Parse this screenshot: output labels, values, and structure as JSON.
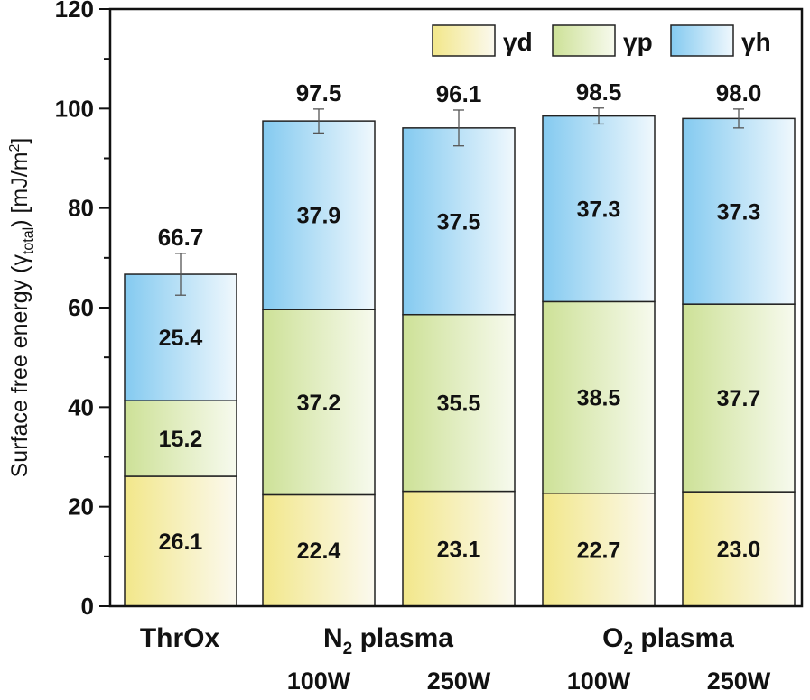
{
  "chart_data": {
    "type": "bar",
    "stacked": true,
    "ylabel": {
      "main": "Surface free energy (γ",
      "sub": "total",
      "unit": ") [mJ/m",
      "sup": "2",
      "close": "]"
    },
    "ylim": [
      0,
      120
    ],
    "yticks": [
      0,
      20,
      40,
      60,
      80,
      100,
      120
    ],
    "categories": [
      "ThrOx",
      "N2 plasma 100W",
      "N2 plasma 250W",
      "O2 plasma 100W",
      "O2 plasma 250W"
    ],
    "group_labels": [
      {
        "main": "ThrOx",
        "sub": "",
        "rest": ""
      },
      {
        "main": "N",
        "sub": "2",
        "rest": " plasma"
      },
      {
        "main": "O",
        "sub": "2",
        "rest": " plasma"
      }
    ],
    "power_labels": [
      "100W",
      "250W",
      "100W",
      "250W"
    ],
    "series": [
      {
        "name": "γd",
        "values": [
          26.1,
          22.4,
          23.1,
          22.7,
          23.0
        ],
        "color_from": "#f2e78a",
        "color_to": "#fbf9ef"
      },
      {
        "name": "γp",
        "values": [
          15.2,
          37.2,
          35.5,
          38.5,
          37.7
        ],
        "color_from": "#cde197",
        "color_to": "#f7faee"
      },
      {
        "name": "γh",
        "values": [
          25.4,
          37.9,
          37.5,
          37.3,
          37.3
        ],
        "color_from": "#84caf0",
        "color_to": "#f0f8fd"
      }
    ],
    "totals": [
      "66.7",
      "97.5",
      "96.1",
      "98.5",
      "98.0"
    ],
    "total_values": [
      66.7,
      97.5,
      96.1,
      98.5,
      98.0
    ],
    "errors": [
      4.2,
      2.4,
      3.6,
      1.6,
      1.9
    ],
    "legend": "top-right"
  }
}
